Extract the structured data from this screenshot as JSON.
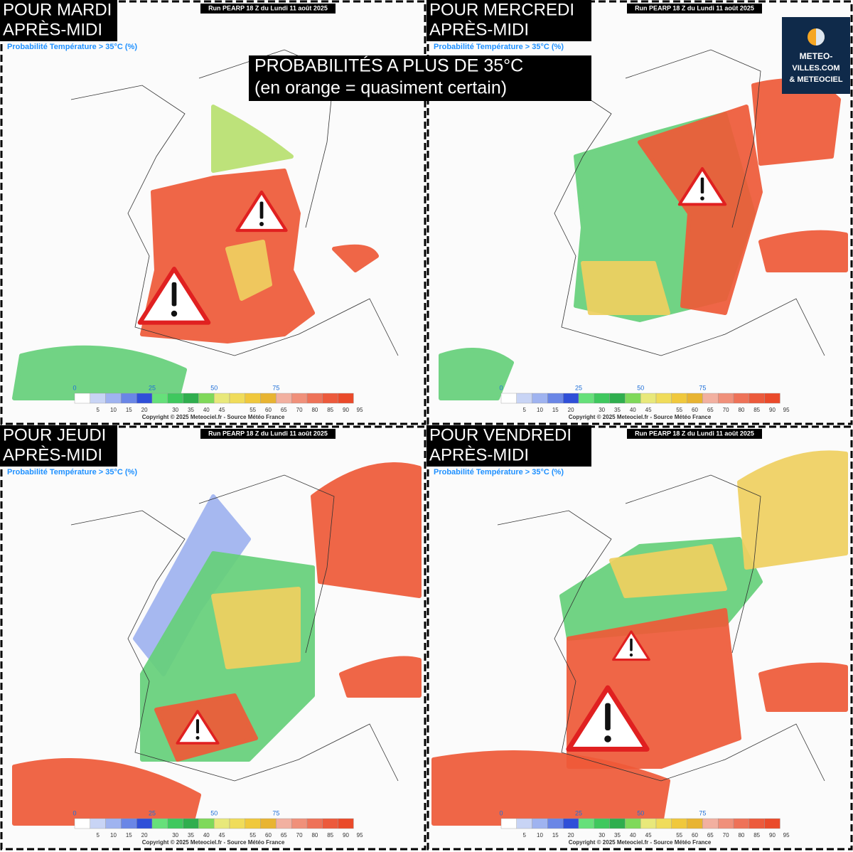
{
  "title": {
    "line1": "PROBABILITÉS A PLUS DE 35°C",
    "line2": "(en orange = quasiment certain)"
  },
  "logo": {
    "line1": "METEO-",
    "line2": "VILLES.COM",
    "line3": "& METEOCIEL"
  },
  "panels": [
    {
      "day": "POUR MARDI",
      "period": "APRÈS-MIDI",
      "run": "Run PEARP 18 Z du Lundi 11 août 2025",
      "legend_title": "Probabilité Température > 35°C (%)",
      "scale_major": [
        "0",
        "25",
        "50",
        "75"
      ],
      "scale_minor": [
        "5",
        "10",
        "15",
        "20",
        "30",
        "35",
        "40",
        "45",
        "55",
        "60",
        "65",
        "70",
        "80",
        "85",
        "90",
        "95"
      ],
      "copyright": "Copyright © 2025 Meteociel.fr - Source Météo France"
    },
    {
      "day": "POUR MERCREDI",
      "period": "APRÈS-MIDI",
      "run": "Run PEARP 18 Z du Lundi 11 août 2025",
      "legend_title": "Probabilité Température > 35°C (%)",
      "scale_major": [
        "0",
        "25",
        "50",
        "75"
      ],
      "scale_minor": [
        "5",
        "10",
        "15",
        "20",
        "30",
        "35",
        "40",
        "45",
        "55",
        "60",
        "65",
        "70",
        "80",
        "85",
        "90",
        "95"
      ],
      "copyright": "Copyright © 2025 Meteociel.fr - Source Météo France"
    },
    {
      "day": "POUR JEUDI",
      "period": "APRÈS-MIDI",
      "run": "Run PEARP 18 Z du Lundi 11 août 2025",
      "legend_title": "Probabilité Température > 35°C (%)",
      "scale_major": [
        "0",
        "25",
        "50",
        "75"
      ],
      "scale_minor": [
        "5",
        "10",
        "15",
        "20",
        "30",
        "35",
        "40",
        "45",
        "55",
        "60",
        "65",
        "70",
        "80",
        "85",
        "90",
        "95"
      ],
      "copyright": "Copyright © 2025 Meteociel.fr - Source Météo France"
    },
    {
      "day": "POUR VENDREDI",
      "period": "APRÈS-MIDI",
      "run": "Run PEARP 18 Z du Lundi 11 août 2025",
      "legend_title": "Probabilité Température > 35°C (%)",
      "scale_major": [
        "0",
        "25",
        "50",
        "75"
      ],
      "scale_minor": [
        "5",
        "10",
        "15",
        "20",
        "30",
        "35",
        "40",
        "45",
        "55",
        "60",
        "65",
        "70",
        "80",
        "85",
        "90",
        "95"
      ],
      "copyright": "Copyright © 2025 Meteociel.fr - Source Météo France"
    }
  ]
}
